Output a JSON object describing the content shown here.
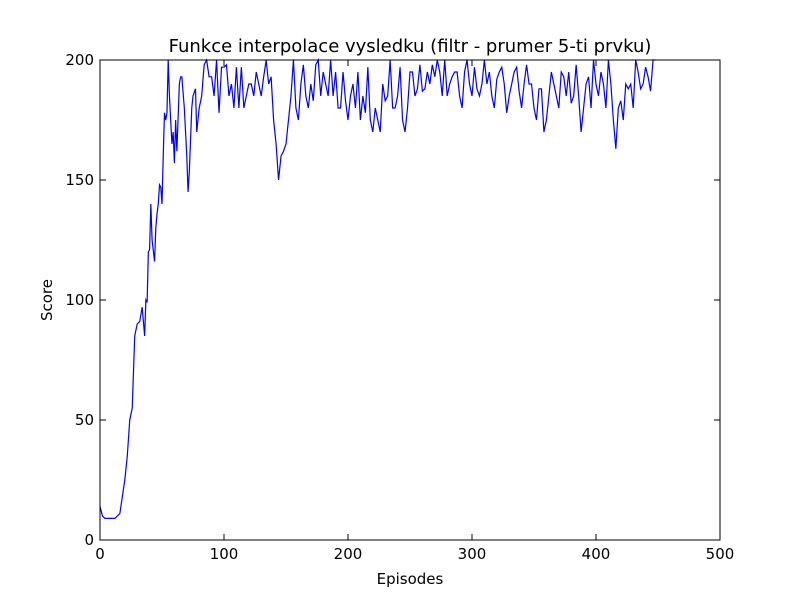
{
  "chart_data": {
    "type": "line",
    "title": "Funkce interpolace vysledku (filtr - prumer 5-ti prvku)",
    "xlabel": "Episodes",
    "ylabel": "Score",
    "color": "#0000ff",
    "xlim": [
      0,
      500
    ],
    "xticks": [
      0,
      100,
      200,
      300,
      400,
      500
    ],
    "ylim": [
      0,
      200
    ],
    "yticks": [
      0,
      50,
      100,
      150,
      200
    ],
    "x": [
      0,
      2,
      4,
      8,
      12,
      14,
      16,
      18,
      20,
      22,
      24,
      26,
      27,
      28,
      30,
      32,
      34,
      36,
      37,
      38,
      39,
      40,
      41,
      42,
      44,
      45,
      46,
      47,
      48,
      49,
      50,
      51,
      52,
      53,
      54,
      55,
      56,
      57,
      58,
      59,
      60,
      61,
      62,
      64,
      65,
      66,
      68,
      70,
      71,
      72,
      74,
      75,
      77,
      78,
      80,
      82,
      84,
      86,
      88,
      90,
      92,
      94,
      96,
      98,
      100,
      102,
      104,
      106,
      108,
      110,
      112,
      114,
      116,
      118,
      120,
      122,
      124,
      126,
      128,
      130,
      132,
      134,
      136,
      138,
      140,
      142,
      144,
      146,
      148,
      150,
      152,
      154,
      156,
      158,
      160,
      162,
      164,
      166,
      168,
      170,
      172,
      174,
      176,
      178,
      180,
      182,
      184,
      186,
      188,
      190,
      192,
      194,
      196,
      198,
      200,
      202,
      204,
      206,
      208,
      210,
      212,
      214,
      216,
      218,
      220,
      222,
      224,
      226,
      228,
      230,
      232,
      234,
      236,
      238,
      240,
      242,
      244,
      246,
      248,
      250,
      252,
      254,
      256,
      258,
      260,
      262,
      264,
      266,
      268,
      270,
      272,
      274,
      276,
      278,
      280,
      282,
      284,
      286,
      288,
      290,
      292,
      294,
      296,
      298,
      300,
      302,
      304,
      306,
      308,
      310,
      312,
      314,
      316,
      318,
      320,
      322,
      324,
      326,
      328,
      330,
      332,
      334,
      336,
      338,
      340,
      342,
      344,
      346,
      348,
      350,
      352,
      354,
      356,
      358,
      360,
      362,
      364,
      366,
      368,
      370,
      372,
      374,
      376,
      378,
      380,
      382,
      384,
      386,
      388,
      390,
      392,
      394,
      396,
      398,
      400,
      402,
      404,
      406,
      408,
      410,
      412,
      414,
      416,
      418,
      420,
      422,
      424,
      426,
      428,
      430,
      432,
      434,
      436,
      438,
      440,
      442,
      444,
      446,
      448
    ],
    "values": [
      14,
      10,
      9,
      9,
      9,
      10,
      11,
      18,
      25,
      35,
      50,
      55,
      70,
      85,
      90,
      91,
      97,
      85,
      100,
      99,
      120,
      121,
      140,
      125,
      116,
      130,
      136,
      140,
      148,
      147,
      140,
      160,
      178,
      175,
      178,
      200,
      185,
      175,
      165,
      170,
      157,
      175,
      162,
      190,
      193,
      193,
      180,
      160,
      145,
      153,
      180,
      185,
      188,
      170,
      180,
      185,
      198,
      200,
      193,
      193,
      185,
      200,
      178,
      197,
      197,
      198,
      185,
      190,
      180,
      197,
      180,
      197,
      180,
      185,
      190,
      190,
      185,
      195,
      190,
      185,
      193,
      200,
      190,
      193,
      175,
      165,
      150,
      160,
      162,
      165,
      175,
      185,
      200,
      180,
      175,
      190,
      198,
      185,
      180,
      190,
      183,
      198,
      200,
      185,
      195,
      190,
      185,
      200,
      185,
      195,
      180,
      180,
      195,
      183,
      175,
      185,
      190,
      180,
      195,
      175,
      185,
      178,
      197,
      175,
      170,
      180,
      175,
      170,
      190,
      183,
      185,
      200,
      180,
      180,
      185,
      197,
      175,
      170,
      180,
      195,
      195,
      185,
      188,
      198,
      187,
      188,
      195,
      190,
      198,
      193,
      200,
      195,
      185,
      200,
      185,
      190,
      193,
      195,
      195,
      185,
      180,
      195,
      200,
      190,
      185,
      197,
      188,
      185,
      190,
      200,
      190,
      195,
      185,
      180,
      192,
      195,
      197,
      190,
      178,
      185,
      190,
      195,
      197,
      187,
      180,
      190,
      198,
      190,
      190,
      180,
      175,
      188,
      188,
      170,
      175,
      185,
      195,
      190,
      185,
      180,
      195,
      193,
      185,
      195,
      182,
      185,
      198,
      185,
      170,
      180,
      190,
      193,
      180,
      200,
      190,
      185,
      195,
      190,
      180,
      200,
      190,
      175,
      163,
      180,
      183,
      175,
      190,
      188,
      190,
      180,
      200,
      195,
      188,
      190,
      197,
      193,
      187,
      200,
      200
    ]
  }
}
